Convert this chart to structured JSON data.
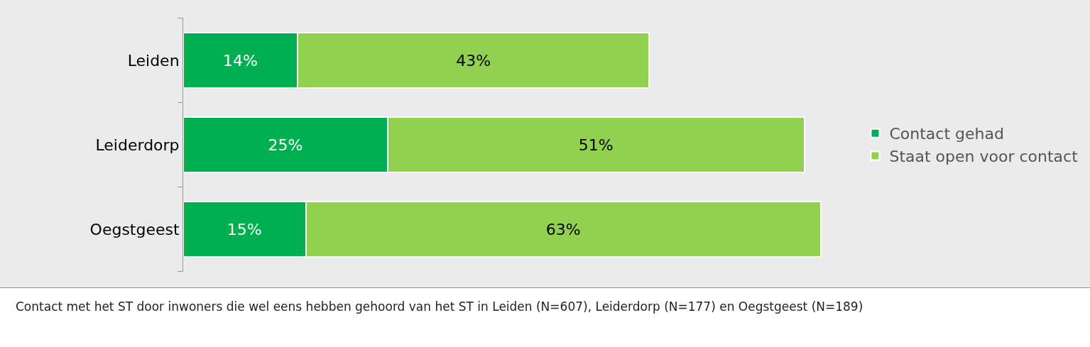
{
  "chart_data": {
    "type": "bar",
    "orientation": "horizontal",
    "stacked": true,
    "categories": [
      "Leiden",
      "Leiderdorp",
      "Oegstgeest"
    ],
    "series": [
      {
        "name": "Contact gehad",
        "color": "#00b050",
        "values": [
          14,
          25,
          15
        ],
        "value_labels": [
          "14%",
          "25%",
          "15%"
        ]
      },
      {
        "name": "Staat open voor contact",
        "color": "#92d050",
        "values": [
          43,
          51,
          63
        ],
        "value_labels": [
          "43%",
          "51%",
          "63%"
        ]
      }
    ],
    "legend": "right",
    "tick_labels": "y",
    "annotations": [
      "Contact met het ST door inwoners die wel eens hebben gehoord van het ST in Leiden (N=607), Leiderdorp (N=177) en Oegstgeest (N=189)"
    ]
  }
}
